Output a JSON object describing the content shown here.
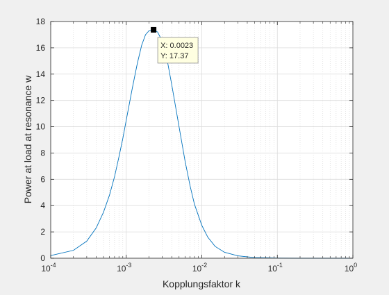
{
  "chart_data": {
    "type": "line",
    "title": "",
    "xlabel": "Kopplungsfaktor k",
    "ylabel": "Power at load at resonance w",
    "xscale": "log",
    "xlim": [
      0.0001,
      1
    ],
    "ylim": [
      0,
      18
    ],
    "grid": true,
    "minor_grid": true,
    "x_ticks": [
      {
        "base": "10",
        "exp": "-4"
      },
      {
        "base": "10",
        "exp": "-3"
      },
      {
        "base": "10",
        "exp": "-2"
      },
      {
        "base": "10",
        "exp": "-1"
      },
      {
        "base": "10",
        "exp": "0"
      }
    ],
    "y_ticks": [
      "0",
      "2",
      "4",
      "6",
      "8",
      "10",
      "12",
      "14",
      "16",
      "18"
    ],
    "series": [
      {
        "color": "#0072bd",
        "x": [
          0.0001,
          0.0002,
          0.0003,
          0.0004,
          0.0005,
          0.0006,
          0.0007,
          0.0008,
          0.0009,
          0.001,
          0.0012,
          0.0014,
          0.0016,
          0.0018,
          0.002,
          0.0023,
          0.0026,
          0.003,
          0.0035,
          0.004,
          0.005,
          0.006,
          0.007,
          0.008,
          0.01,
          0.012,
          0.015,
          0.02,
          0.03,
          0.05,
          0.1,
          0.2,
          0.5,
          1.0
        ],
        "y": [
          0.2,
          0.6,
          1.3,
          2.3,
          3.5,
          4.8,
          6.2,
          7.7,
          9.1,
          10.5,
          12.9,
          14.8,
          16.2,
          17.0,
          17.3,
          17.37,
          17.2,
          16.5,
          15.0,
          13.2,
          10.0,
          7.4,
          5.5,
          4.1,
          2.5,
          1.6,
          0.9,
          0.45,
          0.18,
          0.05,
          0.01,
          0.0,
          0.0,
          0.0
        ]
      }
    ],
    "datatip": {
      "x": 0.0023,
      "y": 17.37,
      "x_text": "X: 0.0023",
      "y_text": "Y: 17.37"
    }
  }
}
